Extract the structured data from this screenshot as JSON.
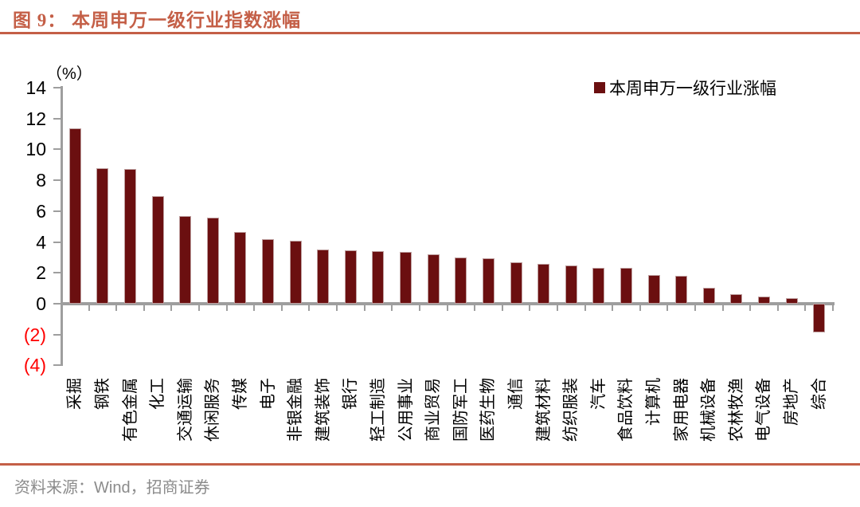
{
  "page": {
    "title": "图 9： 本周申万一级行业指数涨幅",
    "source_note": "资料来源：Wind，招商证券",
    "accent_color": "#C45F47"
  },
  "chart_data": {
    "type": "bar",
    "title": "本周申万一级行业指数涨幅",
    "unit_label": "（%）",
    "legend": [
      "本周申万一级行业涨幅"
    ],
    "legend_position": "top-right",
    "grid": false,
    "bar_color": "#6B0F10",
    "axis_color": "#9E9E9E",
    "tick_label_color": "#000000",
    "negative_tick_label_color": "#FF0000",
    "ylim": [
      -4,
      14
    ],
    "yticks": [
      14,
      12,
      10,
      8,
      6,
      4,
      2,
      0,
      -2,
      -4
    ],
    "ytick_labels": [
      "14",
      "12",
      "10",
      "8",
      "6",
      "4",
      "2",
      "0",
      "(2)",
      "(4)"
    ],
    "categories": [
      "采掘",
      "钢铁",
      "有色金属",
      "化工",
      "交通运输",
      "休闲服务",
      "传媒",
      "电子",
      "非银金融",
      "建筑装饰",
      "银行",
      "轻工制造",
      "公用事业",
      "商业贸易",
      "国防军工",
      "医药生物",
      "通信",
      "建筑材料",
      "纺织服装",
      "汽车",
      "食品饮料",
      "计算机",
      "家用电器",
      "机械设备",
      "农林牧渔",
      "电气设备",
      "房地产",
      "综合"
    ],
    "values": [
      11.35,
      8.8,
      8.75,
      6.95,
      5.7,
      5.6,
      4.65,
      4.2,
      4.1,
      3.5,
      3.45,
      3.4,
      3.35,
      3.2,
      3.0,
      2.95,
      2.7,
      2.6,
      2.5,
      2.35,
      2.3,
      1.85,
      1.8,
      1.05,
      0.6,
      0.45,
      0.35,
      -1.85
    ]
  }
}
